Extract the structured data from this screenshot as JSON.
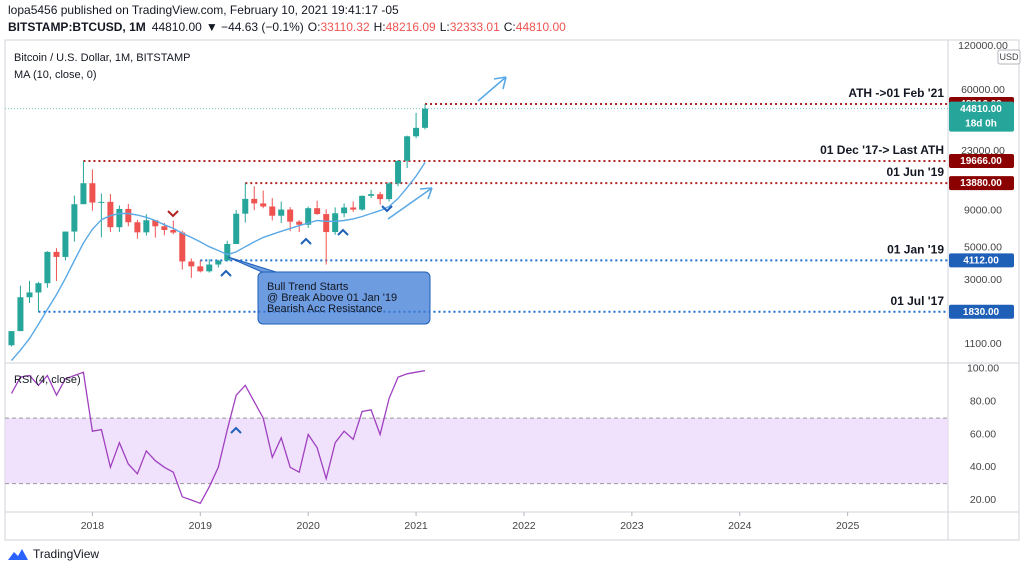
{
  "header": {
    "publisher": "lopa5456 published on TradingView.com, February 10, 2021 19:41:17 -05",
    "symbol": "BITSTAMP:BTCUSD, 1M",
    "price": "44810.00",
    "change": "▼ −44.63 (−0.1%)",
    "ohlc": [
      [
        "O:",
        "33110.32"
      ],
      [
        "H:",
        "48216.09"
      ],
      [
        "L:",
        "32333.01"
      ],
      [
        "C:",
        "44810.00"
      ]
    ]
  },
  "footer": "TradingView",
  "chart_data": [
    {
      "type": "candlestick",
      "title": "Bitcoin / U.S. Dollar, 1M, BITSTAMP",
      "currency": "USD",
      "up_color": "#26a69a",
      "down_color": "#ef5350",
      "log_scale": true,
      "x": [
        2017.25,
        2017.333,
        2017.417,
        2017.5,
        2017.583,
        2017.667,
        2017.75,
        2017.833,
        2017.917,
        2018.0,
        2018.083,
        2018.167,
        2018.25,
        2018.333,
        2018.417,
        2018.5,
        2018.583,
        2018.667,
        2018.75,
        2018.833,
        2018.917,
        2019.0,
        2019.083,
        2019.167,
        2019.25,
        2019.333,
        2019.417,
        2019.5,
        2019.583,
        2019.667,
        2019.75,
        2019.833,
        2019.917,
        2020.0,
        2020.083,
        2020.167,
        2020.25,
        2020.333,
        2020.417,
        2020.5,
        2020.583,
        2020.667,
        2020.75,
        2020.833,
        2020.917,
        2021.0,
        2021.083
      ],
      "open": [
        1080,
        1350,
        2300,
        2480,
        2870,
        4700,
        4340,
        6470,
        9950,
        13850,
        10220,
        10330,
        6930,
        9240,
        7490,
        6390,
        7730,
        7030,
        6630,
        6370,
        4040,
        3740,
        3460,
        3850,
        4100,
        5320,
        8570,
        10820,
        10080,
        9600,
        8300,
        9150,
        7560,
        7200,
        9350,
        8520,
        6420,
        8630,
        9450,
        9140,
        11350,
        11650,
        10780,
        13800,
        19700,
        28990,
        33110.32
      ],
      "high": [
        1350,
        2760,
        2980,
        2930,
        4750,
        4980,
        6470,
        11400,
        19666,
        17200,
        11780,
        11700,
        9760,
        9990,
        7780,
        8500,
        7750,
        7410,
        7680,
        6560,
        4240,
        4112,
        4190,
        4140,
        5600,
        9100,
        13880,
        13200,
        12330,
        10950,
        10370,
        9500,
        7750,
        9580,
        10500,
        9190,
        9470,
        10080,
        10400,
        11440,
        12470,
        12090,
        14100,
        19900,
        29300,
        41950,
        48216.09
      ],
      "low": [
        1060,
        1350,
        2100,
        1830,
        2670,
        2970,
        4110,
        5520,
        10900,
        9000,
        5900,
        6430,
        6430,
        7030,
        5780,
        6070,
        5880,
        6100,
        6200,
        3550,
        3120,
        3400,
        3390,
        3670,
        4030,
        5320,
        7460,
        9060,
        9350,
        7710,
        7400,
        6520,
        6430,
        6860,
        8430,
        3850,
        6150,
        8110,
        8820,
        8980,
        10960,
        9880,
        10370,
        13200,
        17600,
        28130,
        32333.01
      ],
      "close": [
        1350,
        2300,
        2480,
        2870,
        4700,
        4340,
        6470,
        9950,
        13850,
        10220,
        10330,
        6930,
        9240,
        7490,
        6390,
        7730,
        7030,
        6630,
        6370,
        4040,
        3740,
        3460,
        3850,
        4100,
        5320,
        8570,
        10820,
        10080,
        9600,
        8300,
        9150,
        7560,
        7200,
        9350,
        8520,
        6420,
        8630,
        9450,
        9140,
        11350,
        11650,
        10780,
        13800,
        19700,
        28990,
        33110,
        44810
      ],
      "series": [
        {
          "name": "MA (10, close, 0)",
          "color": "#5aa9e6",
          "values": [
            850,
            1000,
            1200,
            1500,
            1900,
            2400,
            3100,
            4100,
            5400,
            6700,
            7800,
            8300,
            8600,
            8600,
            8400,
            8100,
            7700,
            7200,
            6800,
            6300,
            5900,
            5500,
            5100,
            4800,
            4500,
            4700,
            5100,
            5500,
            5900,
            6200,
            6500,
            6800,
            7100,
            7400,
            7700,
            7600,
            7600,
            7700,
            7900,
            8200,
            8600,
            9000,
            9600,
            10900,
            12900,
            15500,
            19200
          ]
        }
      ],
      "xlim": [
        2017.19,
        2025.93
      ],
      "xticks": [
        2018,
        2019,
        2020,
        2021,
        2022,
        2023,
        2024,
        2025
      ],
      "ylim": [
        830,
        132000
      ],
      "yticks": [
        {
          "value": 120000,
          "label": "120000.00"
        },
        {
          "value": 60000,
          "label": "60000.00"
        },
        {
          "value": 23000,
          "label": "23000.00"
        },
        {
          "value": 9000,
          "label": "9000.00"
        },
        {
          "value": 5000,
          "label": "5000.00"
        },
        {
          "value": 3000,
          "label": "3000.00"
        },
        {
          "value": 1100,
          "label": "1100.00"
        }
      ],
      "levels": [
        {
          "name": "ATH ->01 Feb '21",
          "value": 48216.09,
          "start": 2021.083,
          "color": "#b22222",
          "box_color": "#8b0000"
        },
        {
          "name": "01 Dec '17-> Last ATH",
          "value": 19666,
          "value_label": "19666.00",
          "start": 2017.917,
          "color": "#b22222",
          "box_color": "#8b0000"
        },
        {
          "name": "01 Jun '19",
          "value": 13880,
          "value_label": "13880.00",
          "start": 2019.417,
          "color": "#b22222",
          "box_color": "#8b0000"
        },
        {
          "name": "01 Jan '19",
          "value": 4112,
          "value_label": "4112.00",
          "start": 2019.0,
          "color": "#1e6fd0",
          "box_color": "#1e5fb8"
        },
        {
          "name": "01 Jul '17",
          "value": 1830,
          "value_label": "1830.00",
          "start": 2017.5,
          "color": "#1e6fd0",
          "box_color": "#1e5fb8"
        }
      ],
      "last_price": 44810,
      "last_price_label": "44810.00",
      "countdown": "18d 0h",
      "last_color": "#26a69a",
      "callout": [
        "Bull Trend Starts",
        "@ Break Above 01 Jan '19",
        "Bearish Acc Resistance"
      ]
    },
    {
      "type": "line",
      "title": "RSI (4, close)",
      "color": "#a040c0",
      "band": [
        30,
        70
      ],
      "band_color": "#ecd9fb",
      "x": [
        2017.25,
        2017.333,
        2017.417,
        2017.5,
        2017.583,
        2017.667,
        2017.75,
        2017.833,
        2017.917,
        2018.0,
        2018.083,
        2018.167,
        2018.25,
        2018.333,
        2018.417,
        2018.5,
        2018.583,
        2018.667,
        2018.75,
        2018.833,
        2018.917,
        2019.0,
        2019.083,
        2019.167,
        2019.25,
        2019.333,
        2019.417,
        2019.5,
        2019.583,
        2019.667,
        2019.75,
        2019.833,
        2019.917,
        2020.0,
        2020.083,
        2020.167,
        2020.25,
        2020.333,
        2020.417,
        2020.5,
        2020.583,
        2020.667,
        2020.75,
        2020.833,
        2020.917,
        2021.0,
        2021.083
      ],
      "values": [
        85,
        95,
        96,
        90,
        96,
        84,
        94,
        96,
        98,
        62,
        63,
        40,
        55,
        42,
        36,
        50,
        44,
        40,
        37,
        22,
        20,
        18,
        28,
        40,
        63,
        84,
        90,
        80,
        70,
        46,
        58,
        40,
        37,
        60,
        52,
        33,
        55,
        62,
        57,
        74,
        75,
        60,
        82,
        95,
        97,
        98,
        99
      ],
      "xlim": [
        2017.19,
        2025.93
      ],
      "ylim": [
        12.7,
        102.4
      ],
      "yticks": [
        {
          "value": 100,
          "label": "100.00"
        },
        {
          "value": 80,
          "label": "80.00"
        },
        {
          "value": 60,
          "label": "60.00"
        },
        {
          "value": 40,
          "label": "40.00"
        },
        {
          "value": 20,
          "label": "20.00"
        }
      ]
    }
  ]
}
